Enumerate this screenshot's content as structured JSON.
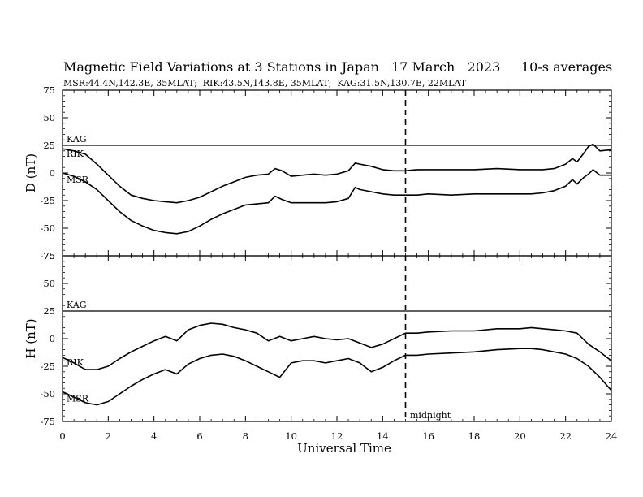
{
  "chart_data": [
    {
      "type": "line",
      "panel": "D",
      "title": "Magnetic Field Variations at 3 Stations in Japan",
      "date": "17 March   2023",
      "averaging": "10-s averages",
      "subtitle": "MSR:44.4N,142.3E, 35MLAT;  RIK:43.5N,143.8E, 35MLAT;  KAG:31.5N,130.7E, 22MLAT",
      "xlabel": "Universal Time",
      "ylabel": "D (nT)",
      "xlim": [
        0,
        24
      ],
      "ylim": [
        -75,
        75
      ],
      "xticks": [
        "0",
        "2",
        "4",
        "6",
        "8",
        "10",
        "12",
        "14",
        "16",
        "18",
        "20",
        "22",
        "24"
      ],
      "yticks": [
        "75",
        "50",
        "25",
        "0",
        "-25",
        "-50",
        "-75"
      ],
      "series": [
        {
          "name": "KAG",
          "x": [
            0,
            24
          ],
          "y": [
            25,
            25
          ]
        },
        {
          "name": "RIK",
          "x": [
            0,
            0.5,
            1,
            1.5,
            2,
            2.5,
            3,
            3.5,
            4,
            4.5,
            5,
            5.5,
            6,
            6.5,
            7,
            7.5,
            8,
            8.5,
            9,
            9.3,
            9.6,
            10,
            10.5,
            11,
            11.5,
            12,
            12.5,
            12.8,
            13,
            13.5,
            14,
            14.5,
            15,
            15.5,
            16,
            17,
            18,
            19,
            20,
            20.5,
            21,
            21.5,
            22,
            22.3,
            22.5,
            22.8,
            23,
            23.2,
            23.5,
            24
          ],
          "y": [
            22,
            20,
            17,
            8,
            -2,
            -12,
            -20,
            -23,
            -25,
            -26,
            -27,
            -25,
            -22,
            -17,
            -12,
            -8,
            -4,
            -2,
            -1,
            4,
            2,
            -3,
            -2,
            -1,
            -2,
            -1,
            2,
            9,
            8,
            6,
            3,
            2,
            2,
            3,
            3,
            3,
            3,
            4,
            3,
            3,
            3,
            4,
            8,
            13,
            10,
            18,
            24,
            26,
            20,
            21
          ]
        },
        {
          "name": "MSR",
          "x": [
            0,
            0.5,
            1,
            1.5,
            2,
            2.5,
            3,
            3.5,
            4,
            4.5,
            5,
            5.5,
            6,
            6.5,
            7,
            7.5,
            8,
            8.5,
            9,
            9.3,
            9.6,
            10,
            10.5,
            11,
            11.5,
            12,
            12.5,
            12.8,
            13,
            13.5,
            14,
            14.5,
            15,
            15.5,
            16,
            17,
            18,
            19,
            20,
            20.5,
            21,
            21.5,
            22,
            22.3,
            22.5,
            22.8,
            23,
            23.2,
            23.5,
            24
          ],
          "y": [
            0,
            -3,
            -8,
            -15,
            -25,
            -35,
            -43,
            -48,
            -52,
            -54,
            -55,
            -53,
            -48,
            -42,
            -37,
            -33,
            -29,
            -28,
            -27,
            -21,
            -24,
            -27,
            -27,
            -27,
            -27,
            -26,
            -23,
            -13,
            -15,
            -17,
            -19,
            -20,
            -20,
            -20,
            -19,
            -20,
            -19,
            -19,
            -19,
            -19,
            -18,
            -16,
            -12,
            -6,
            -10,
            -4,
            -1,
            3,
            -2,
            -2
          ]
        }
      ]
    },
    {
      "type": "line",
      "panel": "H",
      "xlabel": "Universal Time",
      "ylabel": "H (nT)",
      "xlim": [
        0,
        24
      ],
      "ylim": [
        -75,
        75
      ],
      "xticks": [
        "0",
        "2",
        "4",
        "6",
        "8",
        "10",
        "12",
        "14",
        "16",
        "18",
        "20",
        "22",
        "24"
      ],
      "yticks": [
        "75",
        "50",
        "25",
        "0",
        "-25",
        "-50",
        "-75"
      ],
      "annotation": "midnight",
      "vline_x": 15,
      "series": [
        {
          "name": "KAG",
          "x": [
            0,
            24
          ],
          "y": [
            25,
            25
          ]
        },
        {
          "name": "RIK",
          "x": [
            0,
            0.5,
            1,
            1.5,
            2,
            2.5,
            3,
            3.5,
            4,
            4.5,
            5,
            5.5,
            6,
            6.5,
            7,
            7.5,
            8,
            8.5,
            9,
            9.5,
            10,
            10.5,
            11,
            11.5,
            12,
            12.5,
            13,
            13.5,
            14,
            14.5,
            15,
            15.5,
            16,
            17,
            18,
            19,
            20,
            20.5,
            21,
            21.5,
            22,
            22.5,
            23,
            23.5,
            24
          ],
          "y": [
            -17,
            -22,
            -28,
            -28,
            -25,
            -18,
            -12,
            -7,
            -2,
            2,
            -2,
            8,
            12,
            14,
            13,
            10,
            8,
            5,
            -2,
            2,
            -2,
            0,
            2,
            0,
            -1,
            0,
            -4,
            -8,
            -5,
            0,
            5,
            5,
            6,
            7,
            7,
            9,
            9,
            10,
            9,
            8,
            7,
            5,
            -5,
            -12,
            -20
          ]
        },
        {
          "name": "MSR",
          "x": [
            0,
            0.5,
            1,
            1.5,
            2,
            2.5,
            3,
            3.5,
            4,
            4.5,
            5,
            5.5,
            6,
            6.5,
            7,
            7.5,
            8,
            8.5,
            9,
            9.5,
            10,
            10.5,
            11,
            11.5,
            12,
            12.5,
            13,
            13.5,
            14,
            14.5,
            15,
            15.5,
            16,
            17,
            18,
            19,
            20,
            20.5,
            21,
            21.5,
            22,
            22.5,
            23,
            23.5,
            24
          ],
          "y": [
            -48,
            -53,
            -58,
            -60,
            -57,
            -50,
            -43,
            -37,
            -32,
            -28,
            -32,
            -23,
            -18,
            -15,
            -14,
            -16,
            -20,
            -25,
            -30,
            -35,
            -22,
            -20,
            -20,
            -22,
            -20,
            -18,
            -22,
            -30,
            -26,
            -20,
            -15,
            -15,
            -14,
            -13,
            -12,
            -10,
            -9,
            -9,
            -10,
            -12,
            -14,
            -18,
            -25,
            -35,
            -47
          ]
        }
      ]
    }
  ]
}
